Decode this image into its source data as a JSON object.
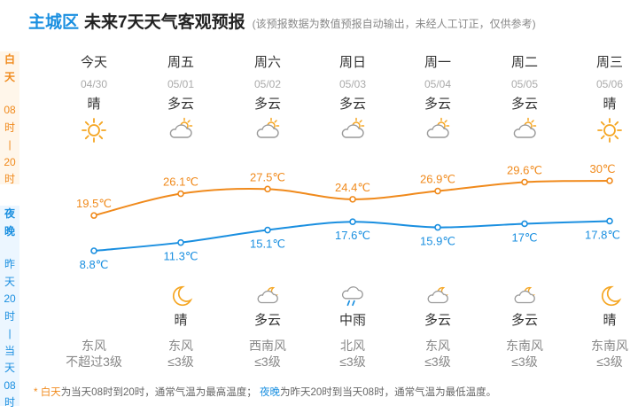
{
  "header": {
    "city": "主城区",
    "title": "未来7天天气客观预报",
    "note": "(该预报数据为数值预报自动输出，未经人工订正，仅供参考)"
  },
  "side_day": [
    "白",
    "天",
    "08",
    "时",
    "|",
    "20",
    "时"
  ],
  "side_night": [
    "夜",
    "晚",
    "昨",
    "天",
    "20",
    "时",
    "|",
    "当",
    "天",
    "08",
    "时"
  ],
  "days": [
    {
      "name": "今天",
      "date": "04/30",
      "day_wx": "晴",
      "day_icon": "sunny-icon",
      "night_wx": "",
      "night_icon": "",
      "wind_dir": "东风",
      "wind_level": "不超过3级",
      "hi": "19.5℃",
      "lo": "8.8℃"
    },
    {
      "name": "周五",
      "date": "05/01",
      "day_wx": "多云",
      "day_icon": "cloudy-icon",
      "night_wx": "晴",
      "night_icon": "moon-icon",
      "wind_dir": "东风",
      "wind_level": "≤3级",
      "hi": "26.1℃",
      "lo": "11.3℃"
    },
    {
      "name": "周六",
      "date": "05/02",
      "day_wx": "多云",
      "day_icon": "cloudy-icon",
      "night_wx": "多云",
      "night_icon": "cloudy-night-icon",
      "wind_dir": "西南风",
      "wind_level": "≤3级",
      "hi": "27.5℃",
      "lo": "15.1℃"
    },
    {
      "name": "周日",
      "date": "05/03",
      "day_wx": "多云",
      "day_icon": "cloudy-icon",
      "night_wx": "中雨",
      "night_icon": "rain-icon",
      "wind_dir": "北风",
      "wind_level": "≤3级",
      "hi": "24.4℃",
      "lo": "17.6℃"
    },
    {
      "name": "周一",
      "date": "05/04",
      "day_wx": "多云",
      "day_icon": "cloudy-icon",
      "night_wx": "多云",
      "night_icon": "cloudy-night-icon",
      "wind_dir": "东风",
      "wind_level": "≤3级",
      "hi": "26.9℃",
      "lo": "15.9℃"
    },
    {
      "name": "周二",
      "date": "05/05",
      "day_wx": "多云",
      "day_icon": "cloudy-icon",
      "night_wx": "多云",
      "night_icon": "cloudy-night-icon",
      "wind_dir": "东南风",
      "wind_level": "≤3级",
      "hi": "29.6℃",
      "lo": "17℃"
    },
    {
      "name": "周三",
      "date": "05/06",
      "day_wx": "晴",
      "day_icon": "sunny-icon",
      "night_wx": "晴",
      "night_icon": "moon-icon",
      "wind_dir": "东南风",
      "wind_level": "≤3级",
      "hi": "30℃",
      "lo": "17.8℃"
    }
  ],
  "chart_data": {
    "type": "line",
    "categories": [
      "04/30",
      "05/01",
      "05/02",
      "05/03",
      "05/04",
      "05/05",
      "05/06"
    ],
    "series": [
      {
        "values": [
          19.5,
          26.1,
          27.5,
          24.4,
          26.9,
          29.6,
          30.0
        ],
        "color": "#f08a1c"
      },
      {
        "values": [
          8.8,
          11.3,
          15.1,
          17.6,
          15.9,
          17.0,
          17.8
        ],
        "color": "#1a8fe0"
      }
    ],
    "unit": "℃"
  },
  "footer": {
    "star": "*",
    "day_kw": "白天",
    "day_text": "为当天08时到20时，通常气温为最高温度；",
    "night_kw": "夜晚",
    "night_text": "为昨天20时到当天08时，通常气温为最低温度。"
  }
}
